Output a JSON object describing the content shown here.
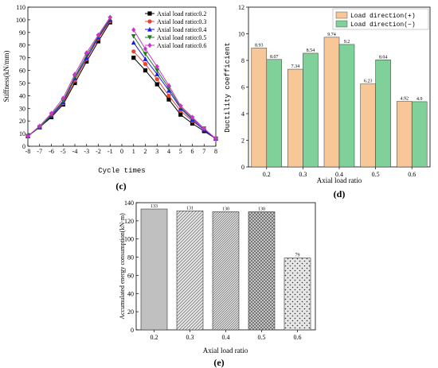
{
  "chart_data": [
    {
      "type": "line",
      "panel_label": "(c)",
      "xlabel": "Cycle times",
      "ylabel": "Stiffness(kN/mm)",
      "xlim": [
        -8,
        8
      ],
      "ylim": [
        0,
        110
      ],
      "x_ticks": [
        "-8",
        "-7",
        "-6",
        "-5",
        "-4",
        "-3",
        "-2",
        "-1",
        "0",
        "1",
        "2",
        "3",
        "4",
        "5",
        "6",
        "7",
        "8"
      ],
      "y_ticks": [
        "0",
        "10",
        "20",
        "30",
        "40",
        "50",
        "60",
        "70",
        "80",
        "90",
        "100",
        "110"
      ],
      "legend_position": "top-right",
      "x_neg": [
        -8,
        -7,
        -6,
        -5,
        -4,
        -3,
        -2,
        -1
      ],
      "x_pos": [
        1,
        2,
        3,
        4,
        5,
        6,
        7,
        8
      ],
      "series": [
        {
          "name": "Axial load ratio:0.2",
          "color": "#000000",
          "marker": "square",
          "neg": [
            8,
            15,
            23,
            33,
            50,
            67,
            83,
            98
          ],
          "pos": [
            70,
            60,
            49,
            37,
            25,
            18,
            12,
            6
          ]
        },
        {
          "name": "Axial load ratio:0.3",
          "color": "#e8462c",
          "marker": "circle",
          "neg": [
            8,
            15,
            24,
            34,
            52,
            69,
            85,
            99
          ],
          "pos": [
            75,
            65,
            53,
            40,
            28,
            20,
            13,
            6
          ]
        },
        {
          "name": "Axial load ratio:0.4",
          "color": "#1a1ae6",
          "marker": "triangle-up",
          "neg": [
            8,
            15,
            24,
            35,
            54,
            70,
            86,
            100
          ],
          "pos": [
            82,
            69,
            57,
            44,
            30,
            21,
            13,
            6
          ]
        },
        {
          "name": "Axial load ratio:0.5",
          "color": "#1f7a1f",
          "marker": "triangle-down",
          "neg": [
            8,
            15,
            25,
            36,
            55,
            72,
            87,
            101
          ],
          "pos": [
            87,
            73,
            60,
            46,
            31,
            22,
            14,
            6
          ]
        },
        {
          "name": "Axial load ratio:0.6",
          "color": "#cc33cc",
          "marker": "diamond",
          "neg": [
            8,
            16,
            26,
            38,
            57,
            74,
            88,
            102
          ],
          "pos": [
            92,
            77,
            63,
            48,
            32,
            23,
            14,
            6
          ]
        }
      ]
    },
    {
      "type": "bar",
      "panel_label": "(d)",
      "xlabel": "Axial load ratio",
      "ylabel": "Ductility coefficient",
      "categories": [
        "0.2",
        "0.3",
        "0.4",
        "0.5",
        "0.6"
      ],
      "ylim": [
        0,
        12
      ],
      "y_ticks": [
        "0",
        "2",
        "4",
        "6",
        "8",
        "10",
        "12"
      ],
      "legend_position": "top-right",
      "series": [
        {
          "name": "Load direction(+)",
          "color": "#f7c797",
          "values": [
            8.93,
            7.34,
            9.74,
            6.23,
            4.92
          ],
          "labels": [
            "8.93",
            "7.34",
            "9.74",
            "6.23",
            "4.92"
          ]
        },
        {
          "name": "Load direction(−)",
          "color": "#7fd199",
          "values": [
            8.07,
            8.54,
            9.2,
            8.04,
            4.9
          ],
          "labels": [
            "8.07",
            "8.54",
            "9.2",
            "8.04",
            "4.9"
          ]
        }
      ]
    },
    {
      "type": "bar",
      "panel_label": "(e)",
      "xlabel": "Axial load ratio",
      "ylabel": "Accumulated energy consumption(kN·m)",
      "categories": [
        "0.2",
        "0.3",
        "0.4",
        "0.5",
        "0.6"
      ],
      "values": [
        133,
        131,
        130,
        130,
        79
      ],
      "value_labels": [
        "133",
        "131",
        "130",
        "130",
        "79"
      ],
      "ylim": [
        0,
        140
      ],
      "y_ticks": [
        "0",
        "20",
        "40",
        "60",
        "80",
        "100",
        "120",
        "140"
      ]
    }
  ]
}
